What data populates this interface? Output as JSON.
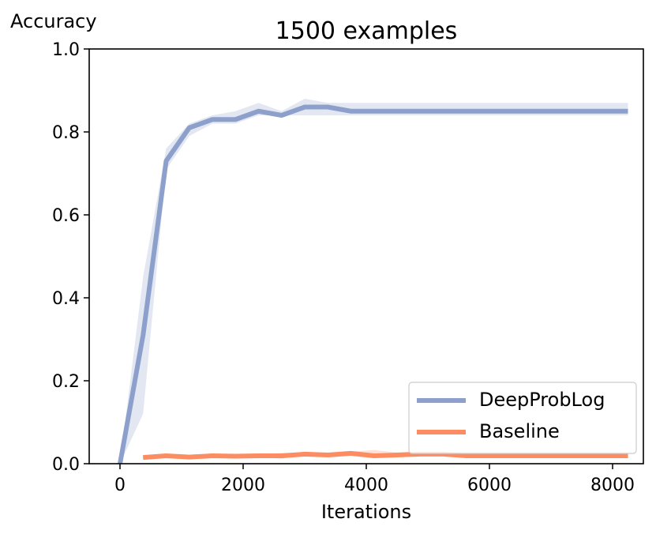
{
  "chart_data": {
    "type": "line",
    "title": "1500 examples",
    "xlabel": "Iterations",
    "ylabel": "Accuracy",
    "xlim": [
      -500,
      8500
    ],
    "ylim": [
      0.0,
      1.0
    ],
    "xticks": [
      0,
      2000,
      4000,
      6000,
      8000
    ],
    "yticks": [
      0.0,
      0.2,
      0.4,
      0.6,
      0.8,
      1.0
    ],
    "xtick_labels": [
      "0",
      "2000",
      "4000",
      "6000",
      "8000"
    ],
    "ytick_labels": [
      "0.0",
      "0.2",
      "0.4",
      "0.6",
      "0.8",
      "1.0"
    ],
    "grid": false,
    "legend_position": "lower-right",
    "series": [
      {
        "name": "DeepProbLog",
        "color": "#8da0cb",
        "x": [
          0,
          375,
          750,
          1125,
          1500,
          1875,
          2250,
          2625,
          3000,
          3375,
          3750,
          4125,
          4500,
          4875,
          5250,
          5625,
          6000,
          6375,
          6750,
          7125,
          7500,
          7875,
          8250
        ],
        "y": [
          0.0,
          0.31,
          0.73,
          0.81,
          0.83,
          0.83,
          0.85,
          0.84,
          0.86,
          0.86,
          0.85,
          0.85,
          0.85,
          0.85,
          0.85,
          0.85,
          0.85,
          0.85,
          0.85,
          0.85,
          0.85,
          0.85,
          0.85
        ],
        "y_lower": [
          0.0,
          0.12,
          0.71,
          0.79,
          0.82,
          0.82,
          0.84,
          0.84,
          0.84,
          0.84,
          0.84,
          0.84,
          0.84,
          0.84,
          0.84,
          0.84,
          0.84,
          0.84,
          0.84,
          0.84,
          0.84,
          0.84,
          0.84
        ],
        "y_upper": [
          0.0,
          0.45,
          0.76,
          0.82,
          0.84,
          0.85,
          0.87,
          0.85,
          0.88,
          0.87,
          0.87,
          0.87,
          0.87,
          0.87,
          0.87,
          0.87,
          0.87,
          0.87,
          0.87,
          0.87,
          0.87,
          0.87,
          0.87
        ]
      },
      {
        "name": "Baseline",
        "color": "#fc8d62",
        "x": [
          375,
          750,
          1125,
          1500,
          1875,
          2250,
          2625,
          3000,
          3375,
          3750,
          4125,
          4500,
          4875,
          5250,
          5625,
          6000,
          6375,
          6750,
          7125,
          7500,
          7875,
          8250
        ],
        "y": [
          0.015,
          0.019,
          0.016,
          0.019,
          0.018,
          0.019,
          0.019,
          0.023,
          0.021,
          0.025,
          0.019,
          0.021,
          0.023,
          0.023,
          0.019,
          0.019,
          0.019,
          0.019,
          0.019,
          0.019,
          0.019,
          0.019
        ],
        "y_lower": [
          0.012,
          0.016,
          0.013,
          0.016,
          0.015,
          0.016,
          0.012,
          0.02,
          0.018,
          0.021,
          0.015,
          0.017,
          0.019,
          0.019,
          0.016,
          0.016,
          0.016,
          0.016,
          0.016,
          0.016,
          0.016,
          0.016
        ],
        "y_upper": [
          0.018,
          0.022,
          0.019,
          0.022,
          0.021,
          0.022,
          0.026,
          0.026,
          0.024,
          0.029,
          0.033,
          0.027,
          0.029,
          0.03,
          0.023,
          0.022,
          0.022,
          0.022,
          0.022,
          0.022,
          0.022,
          0.022
        ]
      }
    ]
  }
}
